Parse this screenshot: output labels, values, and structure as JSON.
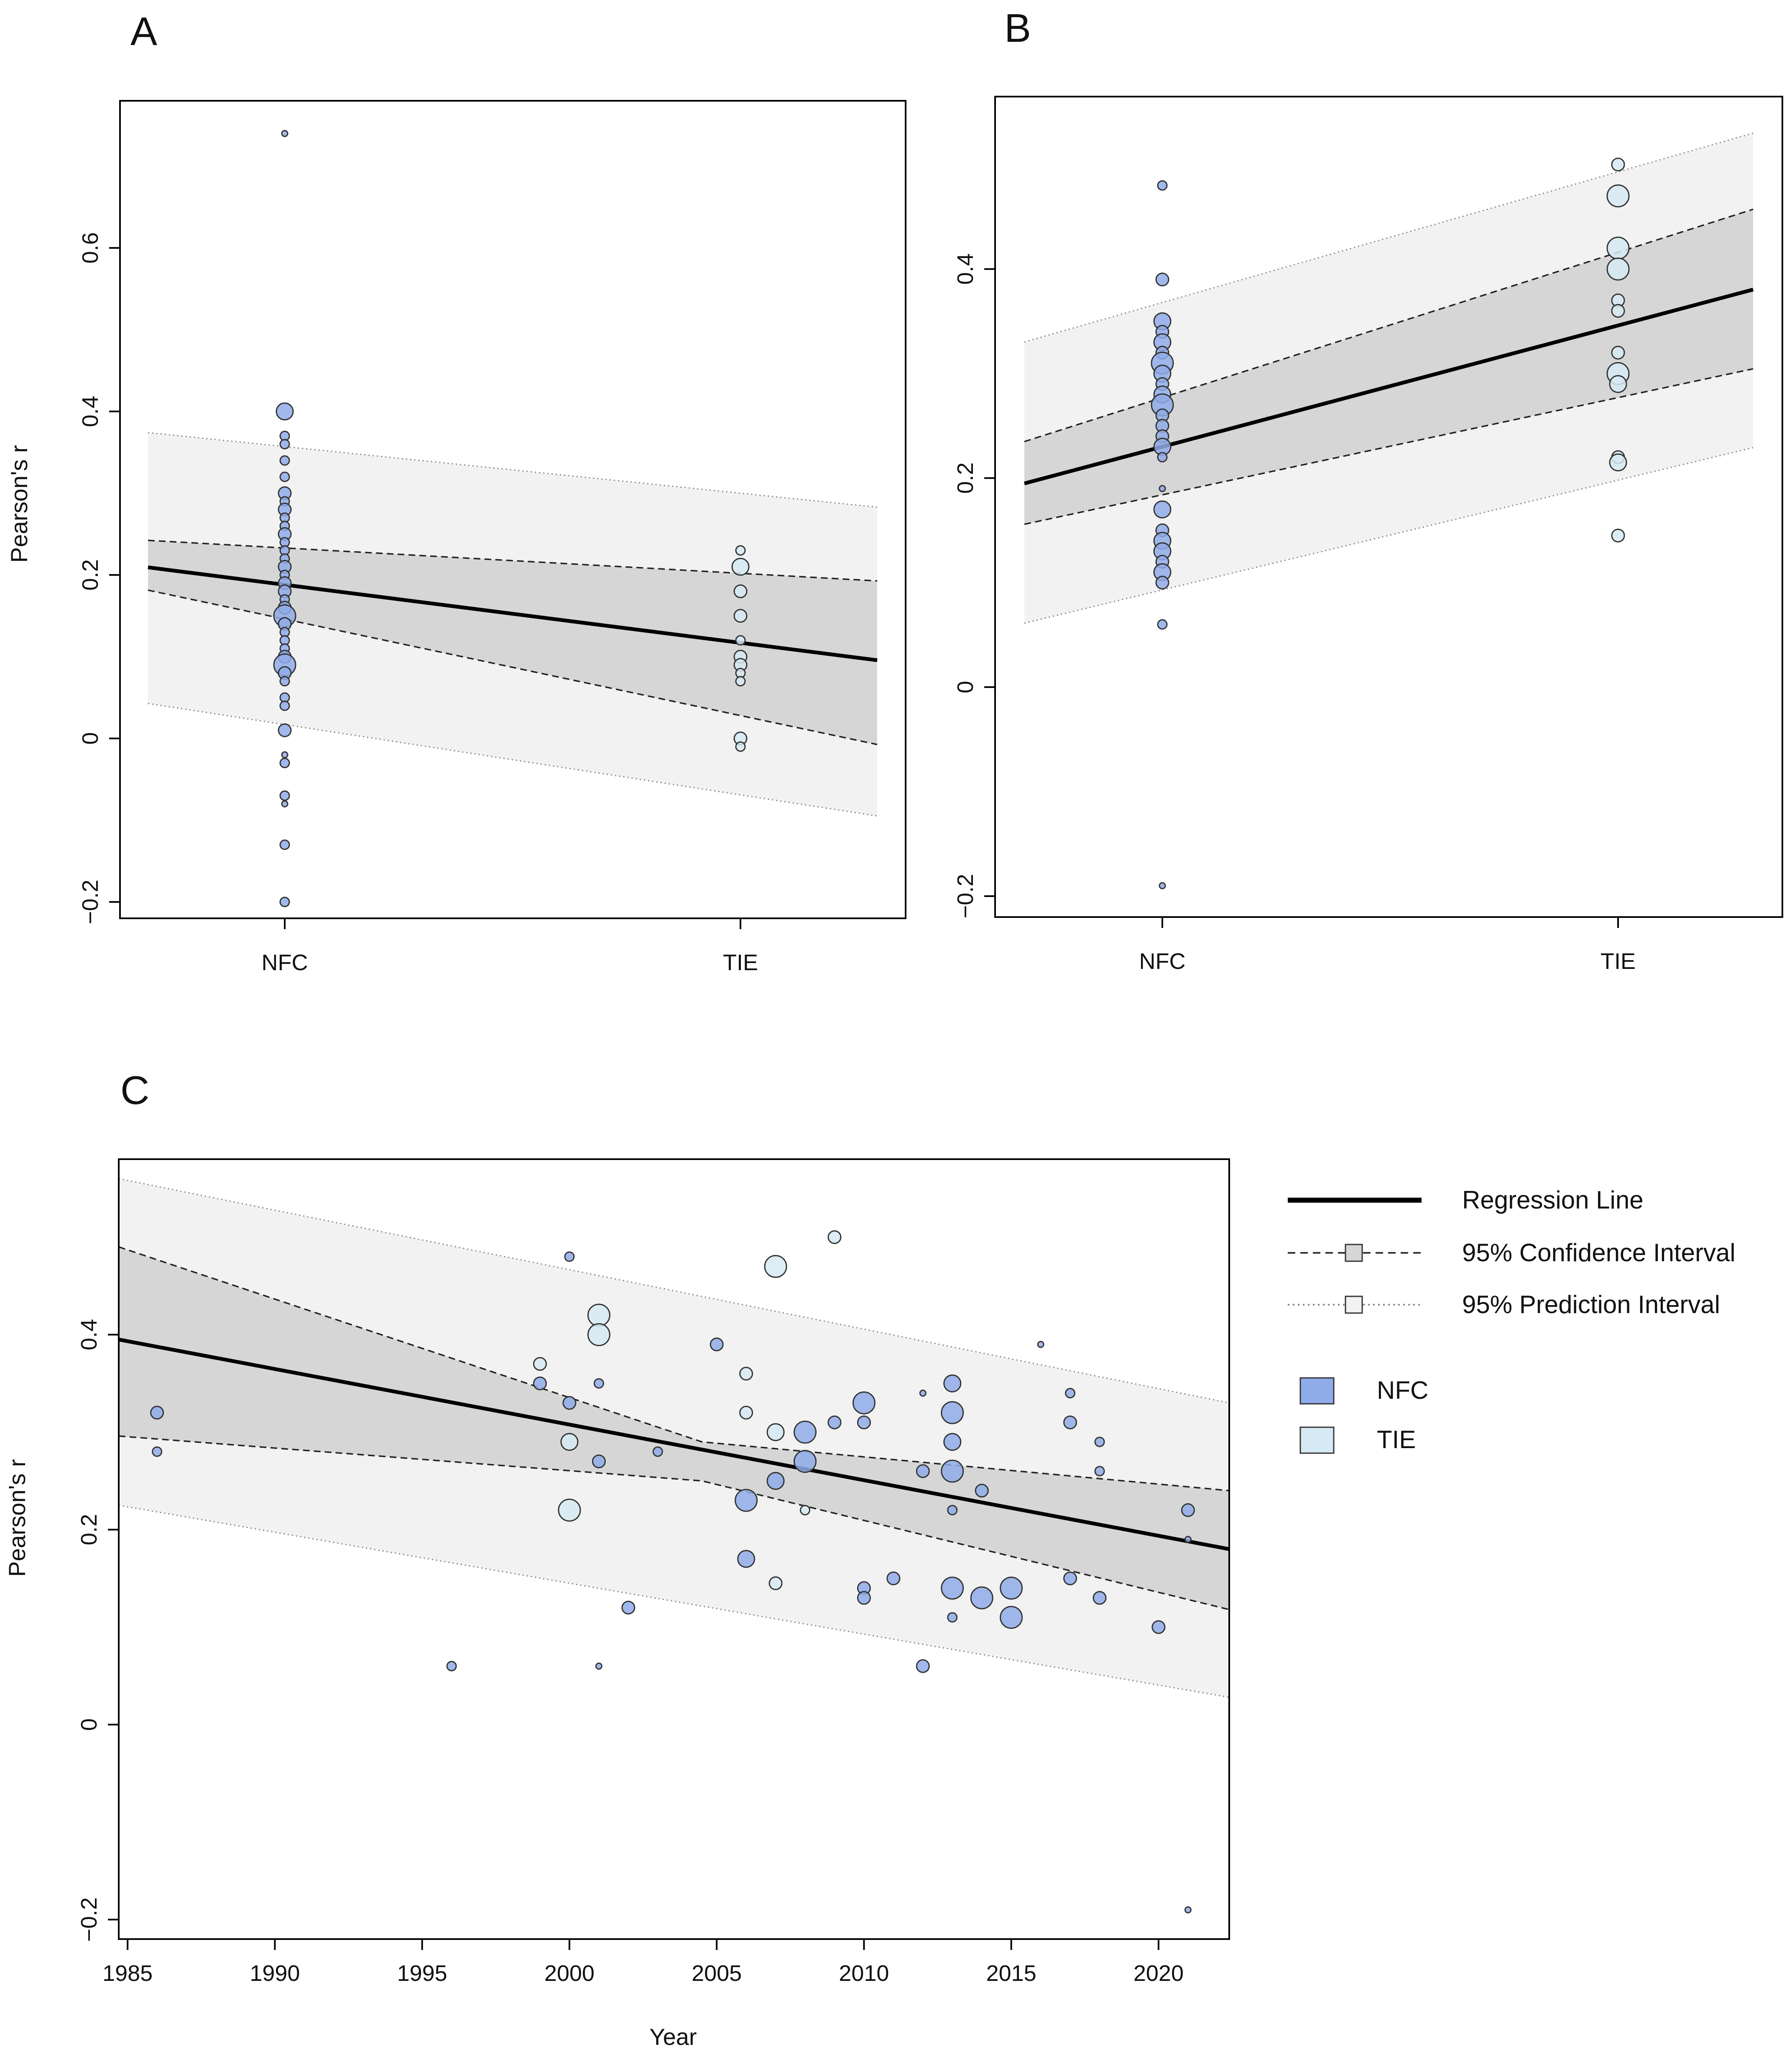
{
  "colors": {
    "nfc": "#8fabe8",
    "tie": "#d6eaf3",
    "prediction_band": "#f2f2f2",
    "confidence_band": "#d6d6d6",
    "regression_line": "#000000"
  },
  "legend": {
    "items": [
      {
        "label": "Regression Line",
        "style": "solid"
      },
      {
        "label": "95% Confidence Interval",
        "style": "dashed"
      },
      {
        "label": "95% Prediction Interval",
        "style": "dotted"
      }
    ],
    "groups": [
      {
        "label": "NFC",
        "color": "#8fabe8"
      },
      {
        "label": "TIE",
        "color": "#d6eaf3"
      }
    ]
  },
  "chart_data": [
    {
      "panel": "A",
      "type": "scatter",
      "xlabel": "",
      "ylabel": "Pearson's r",
      "categories": [
        "NFC",
        "TIE"
      ],
      "ylim": [
        -0.22,
        0.78
      ],
      "y_ticks": [
        -0.2,
        0,
        0.2,
        0.4,
        0.6
      ],
      "y_tick_labels": [
        "−0.2",
        "0",
        "0.2",
        "0.4",
        "0.6"
      ],
      "regression": {
        "at_NFC": 0.188,
        "at_TIE": 0.117
      },
      "confidence_band": {
        "lower": [
          0.146,
          0.028
        ],
        "upper": [
          0.233,
          0.202
        ]
      },
      "prediction_band": {
        "lower": [
          0.017,
          -0.069
        ],
        "upper": [
          0.357,
          0.3
        ]
      },
      "points": {
        "NFC": [
          [
            0.74,
            1
          ],
          [
            0.4,
            4
          ],
          [
            0.37,
            2
          ],
          [
            0.36,
            2
          ],
          [
            0.34,
            2
          ],
          [
            0.32,
            2
          ],
          [
            0.3,
            3
          ],
          [
            0.29,
            2
          ],
          [
            0.28,
            3
          ],
          [
            0.27,
            2
          ],
          [
            0.26,
            2
          ],
          [
            0.25,
            3
          ],
          [
            0.24,
            2
          ],
          [
            0.23,
            2
          ],
          [
            0.22,
            2
          ],
          [
            0.21,
            3
          ],
          [
            0.2,
            2
          ],
          [
            0.19,
            3
          ],
          [
            0.18,
            3
          ],
          [
            0.17,
            2
          ],
          [
            0.16,
            3
          ],
          [
            0.15,
            5
          ],
          [
            0.14,
            3
          ],
          [
            0.13,
            2
          ],
          [
            0.12,
            2
          ],
          [
            0.11,
            2
          ],
          [
            0.1,
            3
          ],
          [
            0.09,
            5
          ],
          [
            0.08,
            3
          ],
          [
            0.07,
            2
          ],
          [
            0.05,
            2
          ],
          [
            0.04,
            2
          ],
          [
            0.01,
            3
          ],
          [
            -0.02,
            1
          ],
          [
            -0.03,
            2
          ],
          [
            -0.07,
            2
          ],
          [
            -0.08,
            1
          ],
          [
            -0.13,
            2
          ],
          [
            -0.2,
            2
          ]
        ],
        "TIE": [
          [
            0.23,
            2
          ],
          [
            0.21,
            4
          ],
          [
            0.18,
            3
          ],
          [
            0.15,
            3
          ],
          [
            0.12,
            2
          ],
          [
            0.1,
            3
          ],
          [
            0.09,
            3
          ],
          [
            0.08,
            2
          ],
          [
            0.07,
            2
          ],
          [
            0.0,
            3
          ],
          [
            -0.01,
            2
          ]
        ]
      }
    },
    {
      "panel": "B",
      "type": "scatter",
      "xlabel": "",
      "ylabel": "",
      "categories": [
        "NFC",
        "TIE"
      ],
      "ylim": [
        -0.22,
        0.565
      ],
      "y_ticks": [
        -0.2,
        0,
        0.2,
        0.4
      ],
      "y_tick_labels": [
        "−0.2",
        "0",
        "0.2",
        "0.4"
      ],
      "regression": {
        "at_NFC": 0.23,
        "at_TIE": 0.346
      },
      "confidence_band": {
        "lower": [
          0.184,
          0.277
        ],
        "upper": [
          0.277,
          0.416
        ]
      },
      "prediction_band": {
        "lower": [
          0.093,
          0.198
        ],
        "upper": [
          0.368,
          0.493
        ]
      },
      "points": {
        "NFC": [
          [
            0.48,
            2
          ],
          [
            0.39,
            3
          ],
          [
            0.35,
            4
          ],
          [
            0.34,
            3
          ],
          [
            0.33,
            4
          ],
          [
            0.32,
            3
          ],
          [
            0.31,
            5
          ],
          [
            0.3,
            4
          ],
          [
            0.29,
            3
          ],
          [
            0.28,
            4
          ],
          [
            0.27,
            5
          ],
          [
            0.26,
            3
          ],
          [
            0.25,
            3
          ],
          [
            0.24,
            3
          ],
          [
            0.23,
            4
          ],
          [
            0.22,
            2
          ],
          [
            0.19,
            1
          ],
          [
            0.17,
            4
          ],
          [
            0.15,
            3
          ],
          [
            0.14,
            4
          ],
          [
            0.13,
            4
          ],
          [
            0.12,
            3
          ],
          [
            0.11,
            4
          ],
          [
            0.1,
            3
          ],
          [
            0.06,
            2
          ],
          [
            -0.19,
            1
          ]
        ],
        "TIE": [
          [
            0.5,
            3
          ],
          [
            0.47,
            5
          ],
          [
            0.42,
            5
          ],
          [
            0.4,
            5
          ],
          [
            0.37,
            3
          ],
          [
            0.36,
            3
          ],
          [
            0.32,
            3
          ],
          [
            0.3,
            5
          ],
          [
            0.29,
            4
          ],
          [
            0.22,
            3
          ],
          [
            0.215,
            4
          ],
          [
            0.145,
            3
          ]
        ]
      }
    },
    {
      "panel": "C",
      "type": "scatter",
      "xlabel": "Year",
      "ylabel": "Pearson's r",
      "xlim": [
        1984.7,
        2022.4
      ],
      "ylim": [
        -0.22,
        0.58
      ],
      "x_ticks": [
        1985,
        1990,
        1995,
        2000,
        2005,
        2010,
        2015,
        2020
      ],
      "y_ticks": [
        -0.2,
        0,
        0.2,
        0.4
      ],
      "y_tick_labels": [
        "−0.2",
        "0",
        "0.2",
        "0.4"
      ],
      "regression": {
        "x": [
          1984.7,
          2022.4
        ],
        "y": [
          0.395,
          0.18
        ]
      },
      "confidence_band": {
        "x": [
          1984.7,
          2004.5,
          2022.4
        ],
        "lower": [
          0.296,
          0.25,
          0.118
        ],
        "upper": [
          0.49,
          0.29,
          0.24
        ]
      },
      "prediction_band": {
        "x": [
          1984.7,
          2022.4
        ],
        "lower": [
          0.225,
          0.028
        ],
        "upper": [
          0.56,
          0.33
        ]
      },
      "points": {
        "NFC": [
          [
            1986,
            0.32,
            3
          ],
          [
            1986,
            0.28,
            2
          ],
          [
            1996,
            0.06,
            2
          ],
          [
            1999,
            0.35,
            3
          ],
          [
            2000,
            0.48,
            2
          ],
          [
            2000,
            0.33,
            3
          ],
          [
            2001,
            0.35,
            2
          ],
          [
            2001,
            0.27,
            3
          ],
          [
            2001,
            0.06,
            1
          ],
          [
            2002,
            0.12,
            3
          ],
          [
            2003,
            0.28,
            2
          ],
          [
            2005,
            0.39,
            3
          ],
          [
            2006,
            0.23,
            5
          ],
          [
            2006,
            0.17,
            4
          ],
          [
            2007,
            0.25,
            4
          ],
          [
            2008,
            0.3,
            5
          ],
          [
            2008,
            0.27,
            5
          ],
          [
            2009,
            0.31,
            3
          ],
          [
            2010,
            0.33,
            5
          ],
          [
            2010,
            0.31,
            3
          ],
          [
            2010,
            0.14,
            3
          ],
          [
            2010,
            0.13,
            3
          ],
          [
            2011,
            0.15,
            3
          ],
          [
            2012,
            0.34,
            1
          ],
          [
            2012,
            0.26,
            3
          ],
          [
            2012,
            0.06,
            3
          ],
          [
            2013,
            0.35,
            4
          ],
          [
            2013,
            0.32,
            5
          ],
          [
            2013,
            0.29,
            4
          ],
          [
            2013,
            0.26,
            5
          ],
          [
            2013,
            0.22,
            2
          ],
          [
            2013,
            0.14,
            5
          ],
          [
            2013,
            0.11,
            2
          ],
          [
            2014,
            0.24,
            3
          ],
          [
            2014,
            0.13,
            5
          ],
          [
            2015,
            0.14,
            5
          ],
          [
            2015,
            0.11,
            5
          ],
          [
            2016,
            0.39,
            1
          ],
          [
            2017,
            0.34,
            2
          ],
          [
            2017,
            0.31,
            3
          ],
          [
            2017,
            0.15,
            3
          ],
          [
            2018,
            0.29,
            2
          ],
          [
            2018,
            0.26,
            2
          ],
          [
            2018,
            0.13,
            3
          ],
          [
            2020,
            0.1,
            3
          ],
          [
            2021,
            0.22,
            3
          ],
          [
            2021,
            0.19,
            1
          ],
          [
            2021,
            -0.19,
            1
          ]
        ],
        "TIE": [
          [
            1999,
            0.37,
            3
          ],
          [
            2000,
            0.29,
            4
          ],
          [
            2000,
            0.22,
            5
          ],
          [
            2001,
            0.42,
            5
          ],
          [
            2001,
            0.4,
            5
          ],
          [
            2006,
            0.36,
            3
          ],
          [
            2006,
            0.32,
            3
          ],
          [
            2007,
            0.47,
            5
          ],
          [
            2007,
            0.3,
            4
          ],
          [
            2007,
            0.145,
            3
          ],
          [
            2008,
            0.22,
            2
          ],
          [
            2009,
            0.5,
            3
          ]
        ]
      }
    }
  ]
}
